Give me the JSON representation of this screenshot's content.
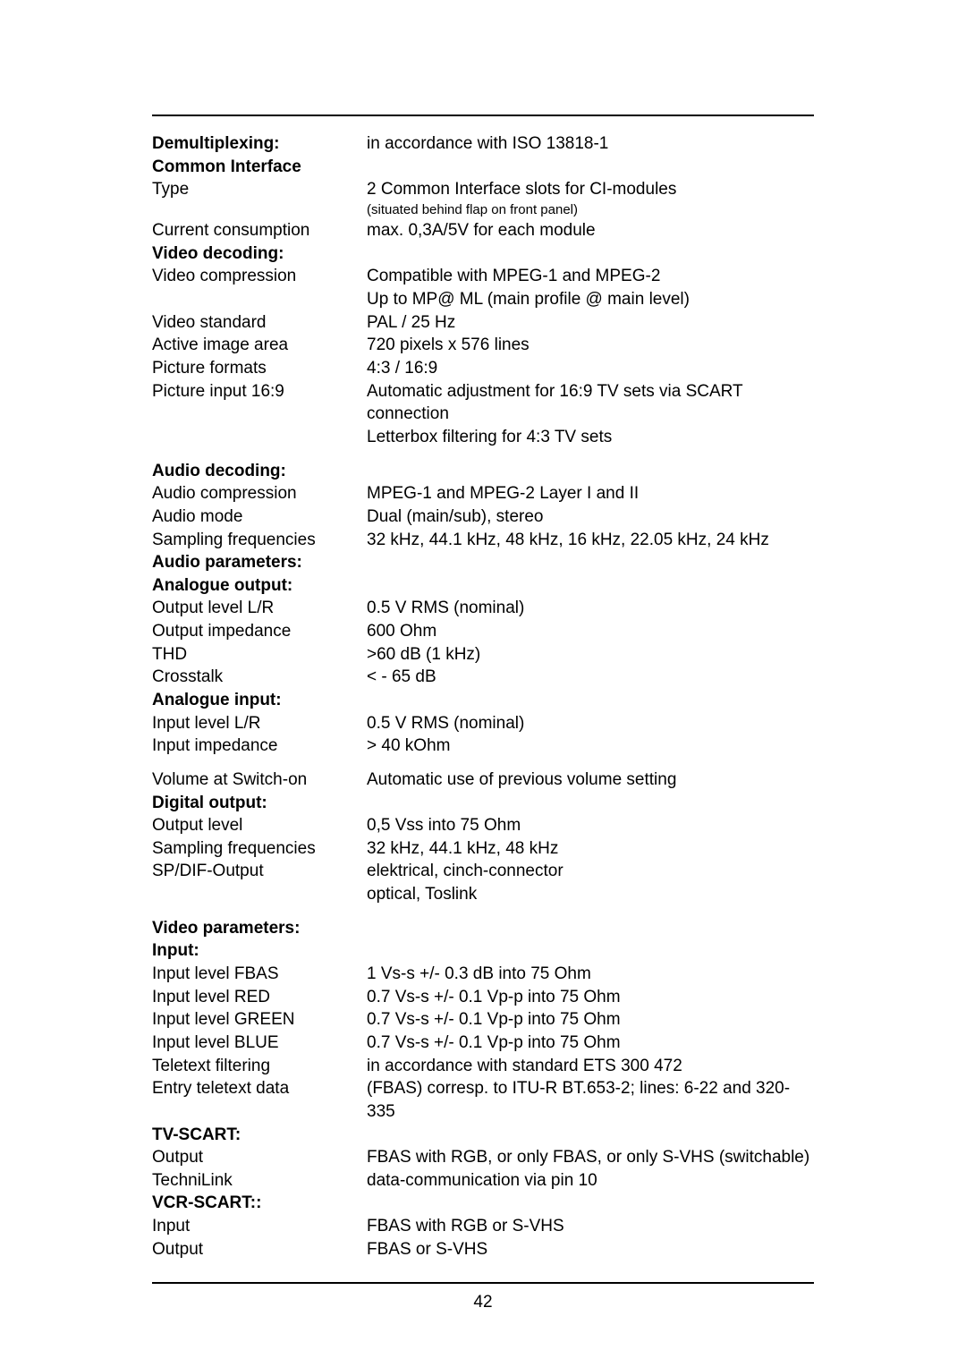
{
  "pageNumber": "42",
  "sections": {
    "demux": {
      "label": "Demultiplexing:",
      "value": "in accordance with ISO 13818-1"
    },
    "commonInterface": {
      "heading": "Common Interface",
      "type": {
        "label": "Type",
        "value": "2 Common Interface slots for CI-modules",
        "note": "(situated behind flap on front panel)"
      },
      "current": {
        "label": "Current consumption",
        "value": "max. 0,3A/5V for each module"
      }
    },
    "videoDecoding": {
      "heading": "Video decoding:",
      "compression": {
        "label": "Video compression",
        "value1": "Compatible with MPEG-1 and MPEG-2",
        "value2": "Up to MP@ ML (main profile @ main level)"
      },
      "standard": {
        "label": "Video standard",
        "value": "PAL / 25 Hz"
      },
      "area": {
        "label": "Active image area",
        "value": "720 pixels x 576 lines"
      },
      "formats": {
        "label": "Picture formats",
        "value": "4:3 / 16:9"
      },
      "input169": {
        "label": "Picture input 16:9",
        "value1": "Automatic adjustment for 16:9 TV sets via SCART connection",
        "value2": "Letterbox filtering for 4:3 TV sets"
      }
    },
    "audioDecoding": {
      "heading": "Audio decoding:",
      "compression": {
        "label": "Audio compression",
        "value": "MPEG-1 and MPEG-2 Layer I and II"
      },
      "mode": {
        "label": "Audio mode",
        "value": "Dual (main/sub), stereo"
      },
      "sampling": {
        "label": "Sampling frequencies",
        "value": "32 kHz, 44.1 kHz, 48 kHz, 16 kHz, 22.05 kHz, 24 kHz"
      }
    },
    "audioParams": {
      "heading": "Audio parameters:",
      "analogueOut": {
        "heading": "Analogue output:",
        "level": {
          "label": "Output level L/R",
          "value": "0.5 V RMS (nominal)"
        },
        "impedance": {
          "label": "Output impedance",
          "value": "600 Ohm"
        },
        "thd": {
          "label": "THD",
          "value": ">60 dB  (1 kHz)"
        },
        "crosstalk": {
          "label": "Crosstalk",
          "value": "< - 65 dB"
        }
      },
      "analogueIn": {
        "heading": "Analogue input:",
        "level": {
          "label": "Input level L/R",
          "value": "0.5 V RMS (nominal)"
        },
        "impedance": {
          "label": "Input impedance",
          "value": "> 40 kOhm"
        }
      },
      "volume": {
        "label": "Volume at Switch-on",
        "value": "Automatic use of previous volume setting"
      }
    },
    "digitalOutput": {
      "heading": "Digital output:",
      "level": {
        "label": "Output level",
        "value": "0,5 Vss into 75 Ohm"
      },
      "sampling": {
        "label": "Sampling frequencies",
        "value": "32 kHz,  44.1 kHz, 48 kHz"
      },
      "spdif": {
        "label": "SP/DIF-Output",
        "value1": "elektrical, cinch-connector",
        "value2": "optical, Toslink"
      }
    },
    "videoParams": {
      "heading": "Video parameters:",
      "input": {
        "heading": "Input:",
        "fbas": {
          "label": "Input level FBAS",
          "value": "1 Vs-s +/- 0.3 dB into 75 Ohm"
        },
        "red": {
          "label": "Input level RED",
          "value": "0.7 Vs-s +/- 0.1 Vp-p into 75 Ohm"
        },
        "green": {
          "label": "Input level GREEN",
          "value": "0.7 Vs-s +/- 0.1 Vp-p into 75 Ohm"
        },
        "blue": {
          "label": "Input level BLUE",
          "value": "0.7 Vs-s +/- 0.1 Vp-p into 75 Ohm"
        },
        "teletextFilter": {
          "label": "Teletext filtering",
          "value": "in accordance with standard ETS 300 472"
        },
        "teletextData": {
          "label": "Entry teletext data",
          "value": "(FBAS) corresp. to ITU-R BT.653-2; lines: 6-22 and 320-335"
        }
      },
      "tvscart": {
        "heading": "TV-SCART:",
        "output": {
          "label": "Output",
          "value": "FBAS with RGB, or only FBAS, or only S-VHS (switchable)"
        },
        "technilink": {
          "label": "TechniLink",
          "value": "data-communication via pin 10"
        }
      },
      "vcrscart": {
        "heading": "VCR-SCART::",
        "input": {
          "label": "Input",
          "value": "FBAS with RGB or S-VHS"
        },
        "output": {
          "label": "Output",
          "value": "FBAS or S-VHS"
        }
      }
    }
  }
}
